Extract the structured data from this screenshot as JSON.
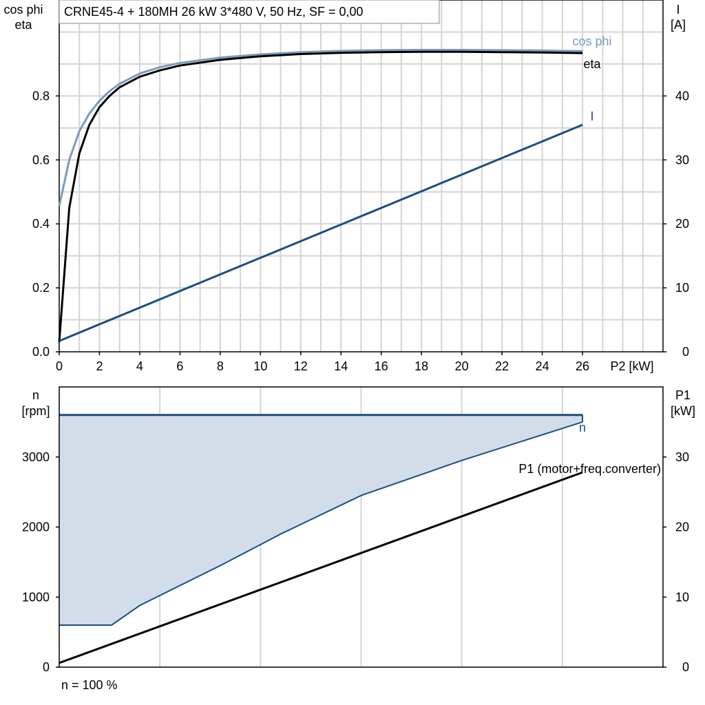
{
  "chart_data": [
    {
      "type": "line",
      "title": "CRNE45-4 + 180MH   26 kW   3*480 V, 50 Hz, SF = 0,00",
      "xlabel": "P2 [kW]",
      "ylabel_left": [
        "cos phi",
        "eta"
      ],
      "ylabel_right": [
        "I",
        "[A]"
      ],
      "xlim": [
        0,
        30
      ],
      "ylim_left": [
        0,
        1.1
      ],
      "ylim_right": [
        0,
        55
      ],
      "x_ticks": [
        "0",
        "2",
        "4",
        "6",
        "8",
        "10",
        "12",
        "14",
        "16",
        "18",
        "20",
        "22",
        "24",
        "26"
      ],
      "y_ticks_left": [
        "0.0",
        "0.2",
        "0.4",
        "0.6",
        "0.8"
      ],
      "y_ticks_right": [
        "0",
        "10",
        "20",
        "30",
        "40"
      ],
      "grid": true,
      "series": [
        {
          "name": "cos phi",
          "axis": "left",
          "color": "#7b9bbb",
          "x": [
            0,
            0.5,
            1,
            1.5,
            2,
            2.5,
            3,
            4,
            5,
            6,
            8,
            10,
            12,
            14,
            16,
            18,
            20,
            22,
            24,
            26
          ],
          "values": [
            0.455,
            0.6,
            0.69,
            0.745,
            0.785,
            0.815,
            0.838,
            0.87,
            0.89,
            0.903,
            0.92,
            0.93,
            0.937,
            0.941,
            0.943,
            0.944,
            0.944,
            0.943,
            0.942,
            0.94
          ]
        },
        {
          "name": "eta",
          "axis": "left",
          "color": "#000000",
          "x": [
            0,
            0.5,
            1,
            1.5,
            2,
            2.5,
            3,
            4,
            5,
            6,
            8,
            10,
            12,
            14,
            16,
            18,
            20,
            22,
            24,
            26
          ],
          "values": [
            0.03,
            0.45,
            0.62,
            0.71,
            0.765,
            0.8,
            0.827,
            0.86,
            0.88,
            0.895,
            0.913,
            0.924,
            0.931,
            0.935,
            0.937,
            0.938,
            0.938,
            0.937,
            0.936,
            0.934
          ]
        },
        {
          "name": "I",
          "axis": "right",
          "color": "#1a4d80",
          "x": [
            0,
            26
          ],
          "values": [
            1.7,
            35.5
          ]
        }
      ]
    },
    {
      "type": "area",
      "xlabel": "",
      "ylabel_left": [
        "n",
        "[rpm]"
      ],
      "ylabel_right": [
        "P1",
        "[kW]"
      ],
      "xlim": [
        0,
        30
      ],
      "ylim_left": [
        0,
        4000
      ],
      "ylim_right": [
        0,
        40
      ],
      "y_ticks_left": [
        "0",
        "1000",
        "2000",
        "3000"
      ],
      "y_ticks_right": [
        "0",
        "10",
        "20",
        "30"
      ],
      "grid": true,
      "footnote": "n = 100 %",
      "series": [
        {
          "name": "n",
          "axis": "left",
          "color": "#1a4d80",
          "x": [
            0,
            26
          ],
          "values": [
            3600,
            3600
          ]
        },
        {
          "name": "",
          "axis": "left",
          "color": "#1a4d80",
          "fill": "#d2dde9",
          "x": [
            0,
            2.6,
            4,
            8,
            11,
            15,
            20,
            26
          ],
          "values": [
            600,
            600,
            880,
            1450,
            1900,
            2450,
            2950,
            3500
          ]
        },
        {
          "name": "P1 (motor+freq.converter)",
          "axis": "right",
          "color": "#000000",
          "x": [
            0,
            26
          ],
          "values": [
            0.6,
            27.8
          ]
        }
      ]
    }
  ]
}
